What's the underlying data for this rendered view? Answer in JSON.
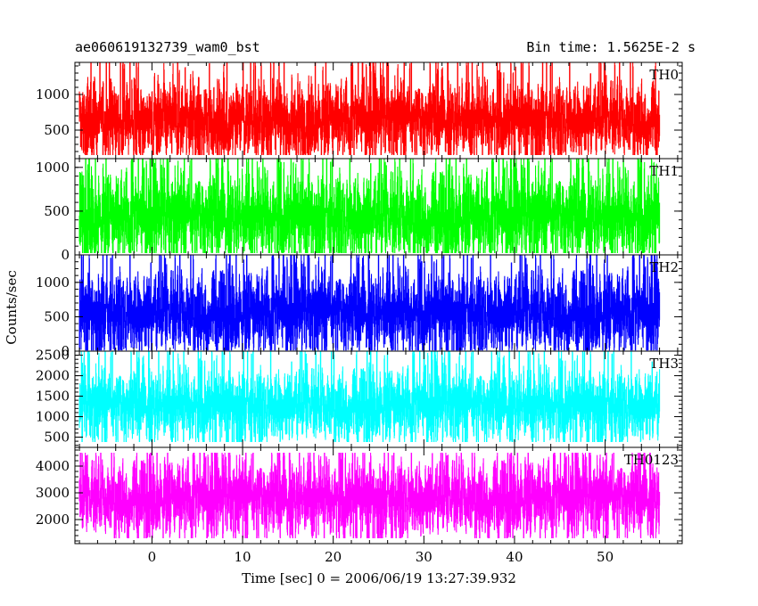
{
  "chart_data": {
    "type": "line",
    "title": "ae060619132739_wam0_bst",
    "bin_time": "Bin time: 1.5625E-2 s",
    "xlabel": "Time [sec] 0 = 2006/06/19 13:27:39.932",
    "ylabel": "Counts/sec",
    "xlim": [
      -8.5,
      58.5
    ],
    "data_x_range": [
      -8,
      56
    ],
    "x_ticks": [
      0,
      10,
      20,
      30,
      40,
      50
    ],
    "grid": false,
    "legend": "none",
    "panels": [
      {
        "name": "TH0",
        "color": "#ff0000",
        "ylim": [
          100,
          1450
        ],
        "y_ticks": [
          500,
          1000
        ],
        "baseline": 650,
        "spread": 230,
        "min": 150,
        "max": 1450
      },
      {
        "name": "TH1",
        "color": "#00ff00",
        "ylim": [
          0,
          1100
        ],
        "y_ticks": [
          0,
          500,
          1000
        ],
        "baseline": 430,
        "spread": 220,
        "min": 20,
        "max": 1100
      },
      {
        "name": "TH2",
        "color": "#0000ff",
        "ylim": [
          0,
          1400
        ],
        "y_ticks": [
          0,
          500,
          1000
        ],
        "baseline": 560,
        "spread": 260,
        "min": 10,
        "max": 1400
      },
      {
        "name": "TH3",
        "color": "#00ffff",
        "ylim": [
          250,
          2600
        ],
        "y_ticks": [
          500,
          1000,
          1500,
          2000,
          2500
        ],
        "baseline": 1280,
        "spread": 380,
        "min": 380,
        "max": 2600
      },
      {
        "name": "TH0123",
        "color": "#ff00ff",
        "ylim": [
          1100,
          4700
        ],
        "y_ticks": [
          2000,
          3000,
          4000
        ],
        "baseline": 2800,
        "spread": 600,
        "min": 1300,
        "max": 4500
      }
    ]
  }
}
